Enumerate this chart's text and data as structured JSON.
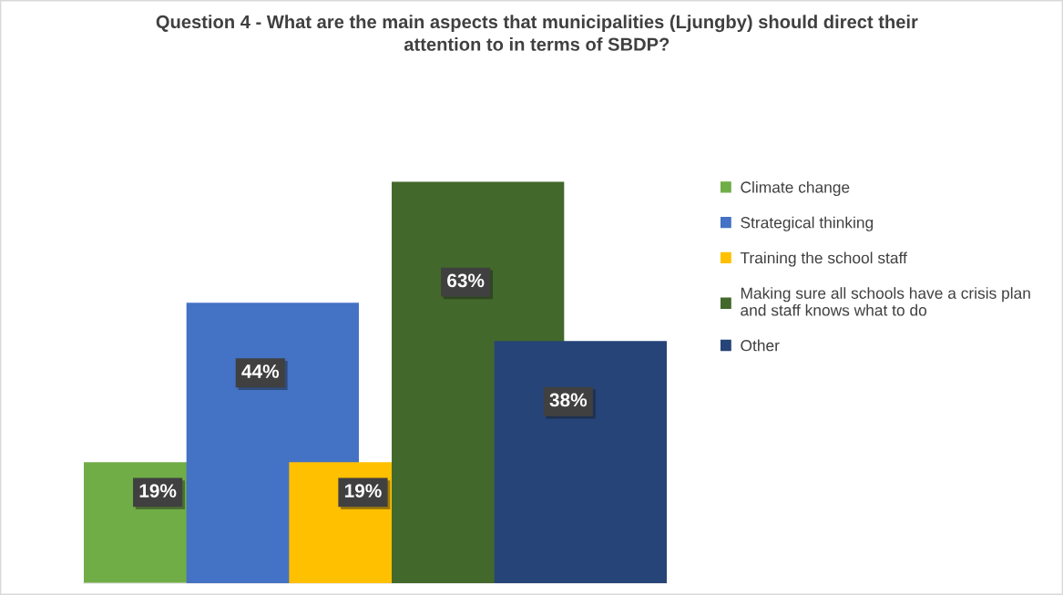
{
  "chart_data": {
    "type": "bar",
    "title": "Question 4 - What are the main aspects that municipalities (Ljungby) should direct their\nattention to in terms of SBDP?",
    "categories": [
      null
    ],
    "series": [
      {
        "name": "Climate change",
        "color": "#70ad47",
        "values": [
          19
        ],
        "value_labels": [
          "19%"
        ]
      },
      {
        "name": "Strategical thinking",
        "color": "#4472c4",
        "values": [
          44
        ],
        "value_labels": [
          "44%"
        ]
      },
      {
        "name": "Training the school staff",
        "color": "#ffc000",
        "values": [
          19
        ],
        "value_labels": [
          "19%"
        ]
      },
      {
        "name": "Making sure all schools have a crisis plan\nand staff knows what to do",
        "color": "#43682b",
        "values": [
          63
        ],
        "value_labels": [
          "63%"
        ]
      },
      {
        "name": "Other",
        "color": "#264478",
        "values": [
          38
        ],
        "value_labels": [
          "38%"
        ]
      }
    ],
    "legend": "right"
  }
}
